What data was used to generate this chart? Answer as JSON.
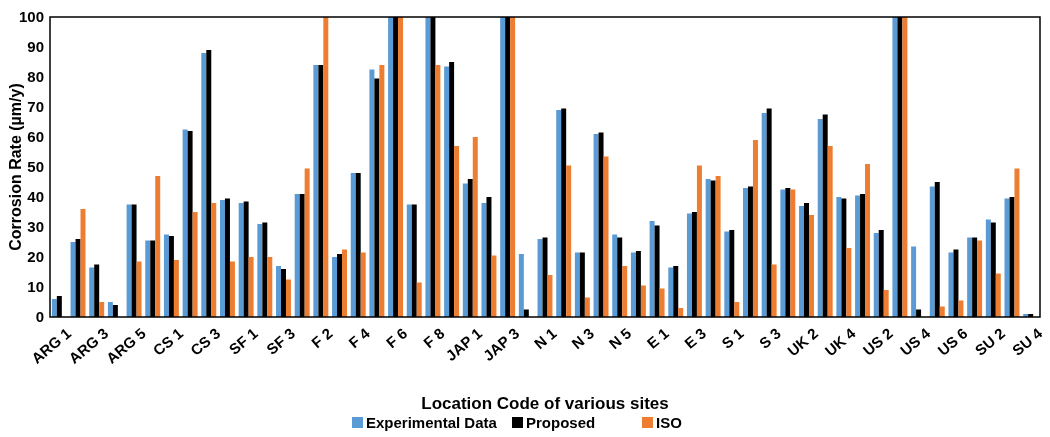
{
  "chart_data": {
    "type": "bar",
    "xlabel": "Location Code of various sites",
    "ylabel": "Corrosion Rate (µm/y)",
    "categories": [
      "ARG 1",
      null,
      "ARG 3",
      null,
      "ARG 5",
      null,
      "CS 1",
      null,
      "CS 3",
      null,
      "SF 1",
      null,
      "SF 3",
      null,
      "F 2",
      null,
      "F 4",
      null,
      "F 6",
      null,
      "F 8",
      null,
      "JAP 1",
      null,
      "JAP 3",
      null,
      "N 1",
      null,
      "N 3",
      null,
      "N 5",
      null,
      "E 1",
      null,
      "E 3",
      null,
      "S 1",
      null,
      "S 3",
      null,
      "UK 2",
      null,
      "UK 4",
      null,
      "US 2",
      null,
      "US 4",
      null,
      "US 6",
      null,
      "SU 2",
      null,
      "SU 4"
    ],
    "series": [
      {
        "name": "Experimental Data",
        "color": "#5b9bd5",
        "values": [
          6,
          25,
          16.5,
          5,
          37.5,
          25.5,
          27.5,
          62.5,
          88,
          39,
          38,
          31,
          17,
          41,
          84,
          20,
          48,
          82.5,
          100,
          37.5,
          100,
          83.5,
          44.5,
          38,
          100,
          21,
          26,
          69,
          21.5,
          61,
          27.5,
          21.5,
          32,
          16.5,
          34.5,
          46,
          28.5,
          43,
          68,
          42.5,
          37,
          66,
          40,
          40.5,
          28,
          100,
          23.5,
          43.5,
          21.5,
          26.5,
          32.5,
          39.5,
          1
        ]
      },
      {
        "name": "Proposed",
        "color": "#000000",
        "values": [
          7,
          26,
          17.5,
          4,
          37.5,
          25.5,
          27,
          62,
          89,
          39.5,
          38.5,
          31.5,
          16,
          41,
          84,
          21,
          48,
          79.5,
          100,
          37.5,
          100,
          85,
          46,
          40,
          100,
          2.5,
          26.5,
          69.5,
          21.5,
          61.5,
          26.5,
          22,
          30.5,
          17,
          35,
          45.5,
          29,
          43.5,
          69.5,
          43,
          38,
          67.5,
          39.5,
          41,
          29,
          100,
          2.5,
          45,
          22.5,
          26.5,
          31.5,
          40,
          1
        ]
      },
      {
        "name": "ISO",
        "color": "#ed7d31",
        "values": [
          null,
          36,
          5,
          null,
          18.5,
          47,
          19,
          35,
          38,
          18.5,
          20,
          20,
          12.5,
          49.5,
          100,
          22.5,
          21.5,
          84,
          100,
          11.5,
          84,
          57,
          60,
          20.5,
          100,
          null,
          14,
          50.5,
          6.5,
          53.5,
          17,
          10.5,
          9.5,
          3,
          50.5,
          47,
          5,
          59,
          17.5,
          42.5,
          34,
          57,
          23,
          51,
          9,
          100,
          null,
          3.5,
          5.5,
          25.5,
          14.5,
          49.5,
          null
        ]
      }
    ],
    "ylim": [
      0,
      100
    ],
    "yticks": [
      0,
      10,
      20,
      30,
      40,
      50,
      60,
      70,
      80,
      90,
      100
    ],
    "grid": false,
    "legend": "bottom"
  }
}
